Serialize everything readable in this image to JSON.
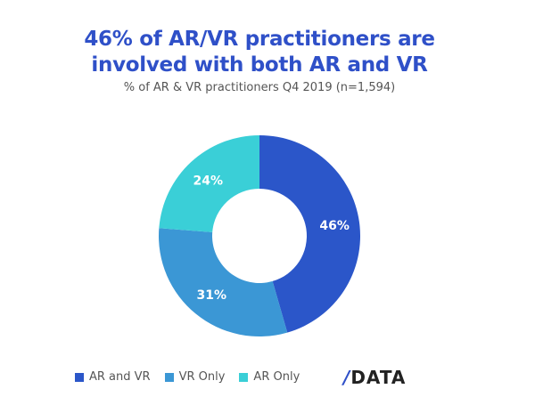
{
  "chart_data": {
    "type": "pie",
    "variant": "donut",
    "title": "46% of AR/VR practitioners are involved with both AR and VR",
    "title_lines": [
      "46% of AR/VR practitioners are",
      "involved with both AR and VR"
    ],
    "subtitle": "% of AR & VR practitioners Q4 2019 (n=1,594)",
    "categories": [
      "AR and VR",
      "VR Only",
      "AR Only"
    ],
    "values": [
      46,
      31,
      24
    ],
    "data_labels": [
      "46%",
      "31%",
      "24%"
    ],
    "colors": [
      "#2b56c9",
      "#3b97d5",
      "#3acfd7"
    ],
    "legend_position": "bottom-left"
  },
  "logo": {
    "text": "DATA",
    "slash": "/"
  }
}
